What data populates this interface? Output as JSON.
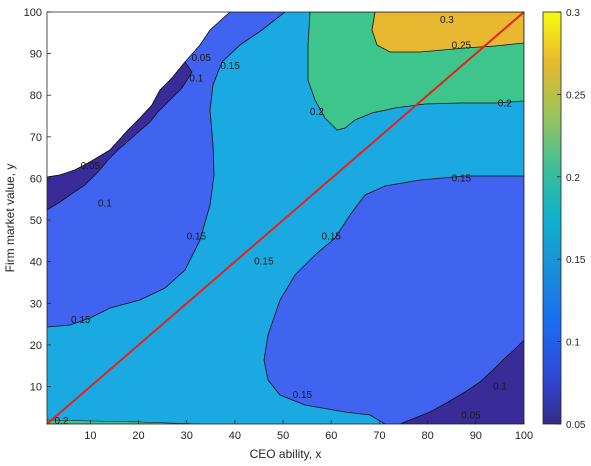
{
  "chart_data": {
    "type": "contour",
    "xlabel": "CEO ability, x",
    "ylabel": "Firm market value, y",
    "xlim": [
      1,
      100
    ],
    "ylim": [
      1,
      100
    ],
    "xticks": [
      "10",
      "20",
      "30",
      "40",
      "50",
      "60",
      "70",
      "80",
      "90",
      "100"
    ],
    "yticks": [
      "10",
      "20",
      "30",
      "40",
      "50",
      "60",
      "70",
      "80",
      "90",
      "100"
    ],
    "grid": false,
    "colormap": "parula",
    "colorbar": {
      "range": [
        0.05,
        0.3
      ],
      "ticks": [
        "0.05",
        "0.1",
        "0.15",
        "0.2",
        "0.25",
        "0.3"
      ]
    },
    "contour_levels": [
      0.05,
      0.1,
      0.15,
      0.2,
      0.25,
      0.3
    ],
    "contour_labels": [
      {
        "text": "0.3",
        "x": 84,
        "y": 100
      },
      {
        "text": "0.25",
        "x": 87,
        "y": 92
      },
      {
        "text": "0.2",
        "x": 96,
        "y": 78
      },
      {
        "text": "0.2",
        "x": 57,
        "y": 76
      },
      {
        "text": "0.15",
        "x": 39,
        "y": 87
      },
      {
        "text": "0.15",
        "x": 87,
        "y": 60
      },
      {
        "text": "0.15",
        "x": 60,
        "y": 46
      },
      {
        "text": "0.15",
        "x": 32,
        "y": 46
      },
      {
        "text": "0.15",
        "x": 8,
        "y": 26
      },
      {
        "text": "0.15",
        "x": 46,
        "y": 40
      },
      {
        "text": "0.15",
        "x": 54,
        "y": 8
      },
      {
        "text": "0.1",
        "x": 32,
        "y": 84
      },
      {
        "text": "0.1",
        "x": 13,
        "y": 54
      },
      {
        "text": "0.1",
        "x": 95,
        "y": 10
      },
      {
        "text": "0.05",
        "x": 33,
        "y": 89
      },
      {
        "text": "0.05",
        "x": 10,
        "y": 63
      },
      {
        "text": "0.05",
        "x": 89,
        "y": 3
      },
      {
        "text": "0.2",
        "x": 4,
        "y": 1
      }
    ],
    "reference_line": {
      "color": "#e8201a",
      "x": [
        1,
        100
      ],
      "y": [
        1,
        100
      ]
    },
    "colors": {
      "level_0.05": "#3a2c98",
      "level_0.10": "#4063f0",
      "level_0.15": "#1aa9e0",
      "level_0.20": "#3ec58c",
      "level_0.25": "#e8b830",
      "level_0.30": "#f9f71a"
    }
  }
}
